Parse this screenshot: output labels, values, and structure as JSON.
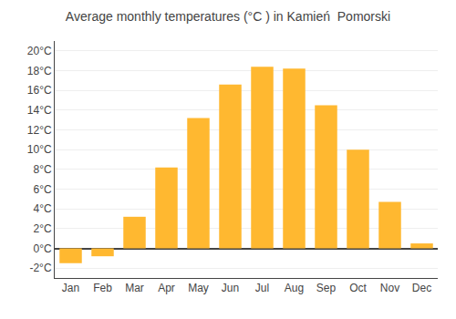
{
  "chart_data": {
    "type": "bar",
    "title": "Average monthly temperatures (°C ) in Kamień  Pomorski",
    "categories": [
      "Jan",
      "Feb",
      "Mar",
      "Apr",
      "May",
      "Jun",
      "Jul",
      "Aug",
      "Sep",
      "Oct",
      "Nov",
      "Dec"
    ],
    "values": [
      -1.5,
      -0.8,
      3.2,
      8.2,
      13.2,
      16.6,
      18.4,
      18.2,
      14.5,
      10.0,
      4.7,
      0.5
    ],
    "color": "#FFB830",
    "ylim": [
      -3,
      21
    ],
    "yticks": [
      {
        "value": -2,
        "label": "-2°C"
      },
      {
        "value": 0,
        "label": "0°C"
      },
      {
        "value": 2,
        "label": "2°C"
      },
      {
        "value": 4,
        "label": "4°C"
      },
      {
        "value": 6,
        "label": "6°C"
      },
      {
        "value": 8,
        "label": "8°C"
      },
      {
        "value": 10,
        "label": "10°C"
      },
      {
        "value": 12,
        "label": "12°C"
      },
      {
        "value": 14,
        "label": "14°C"
      },
      {
        "value": 16,
        "label": "16°C"
      },
      {
        "value": 18,
        "label": "18°C"
      },
      {
        "value": 20,
        "label": "20°C"
      }
    ],
    "grid": true
  }
}
